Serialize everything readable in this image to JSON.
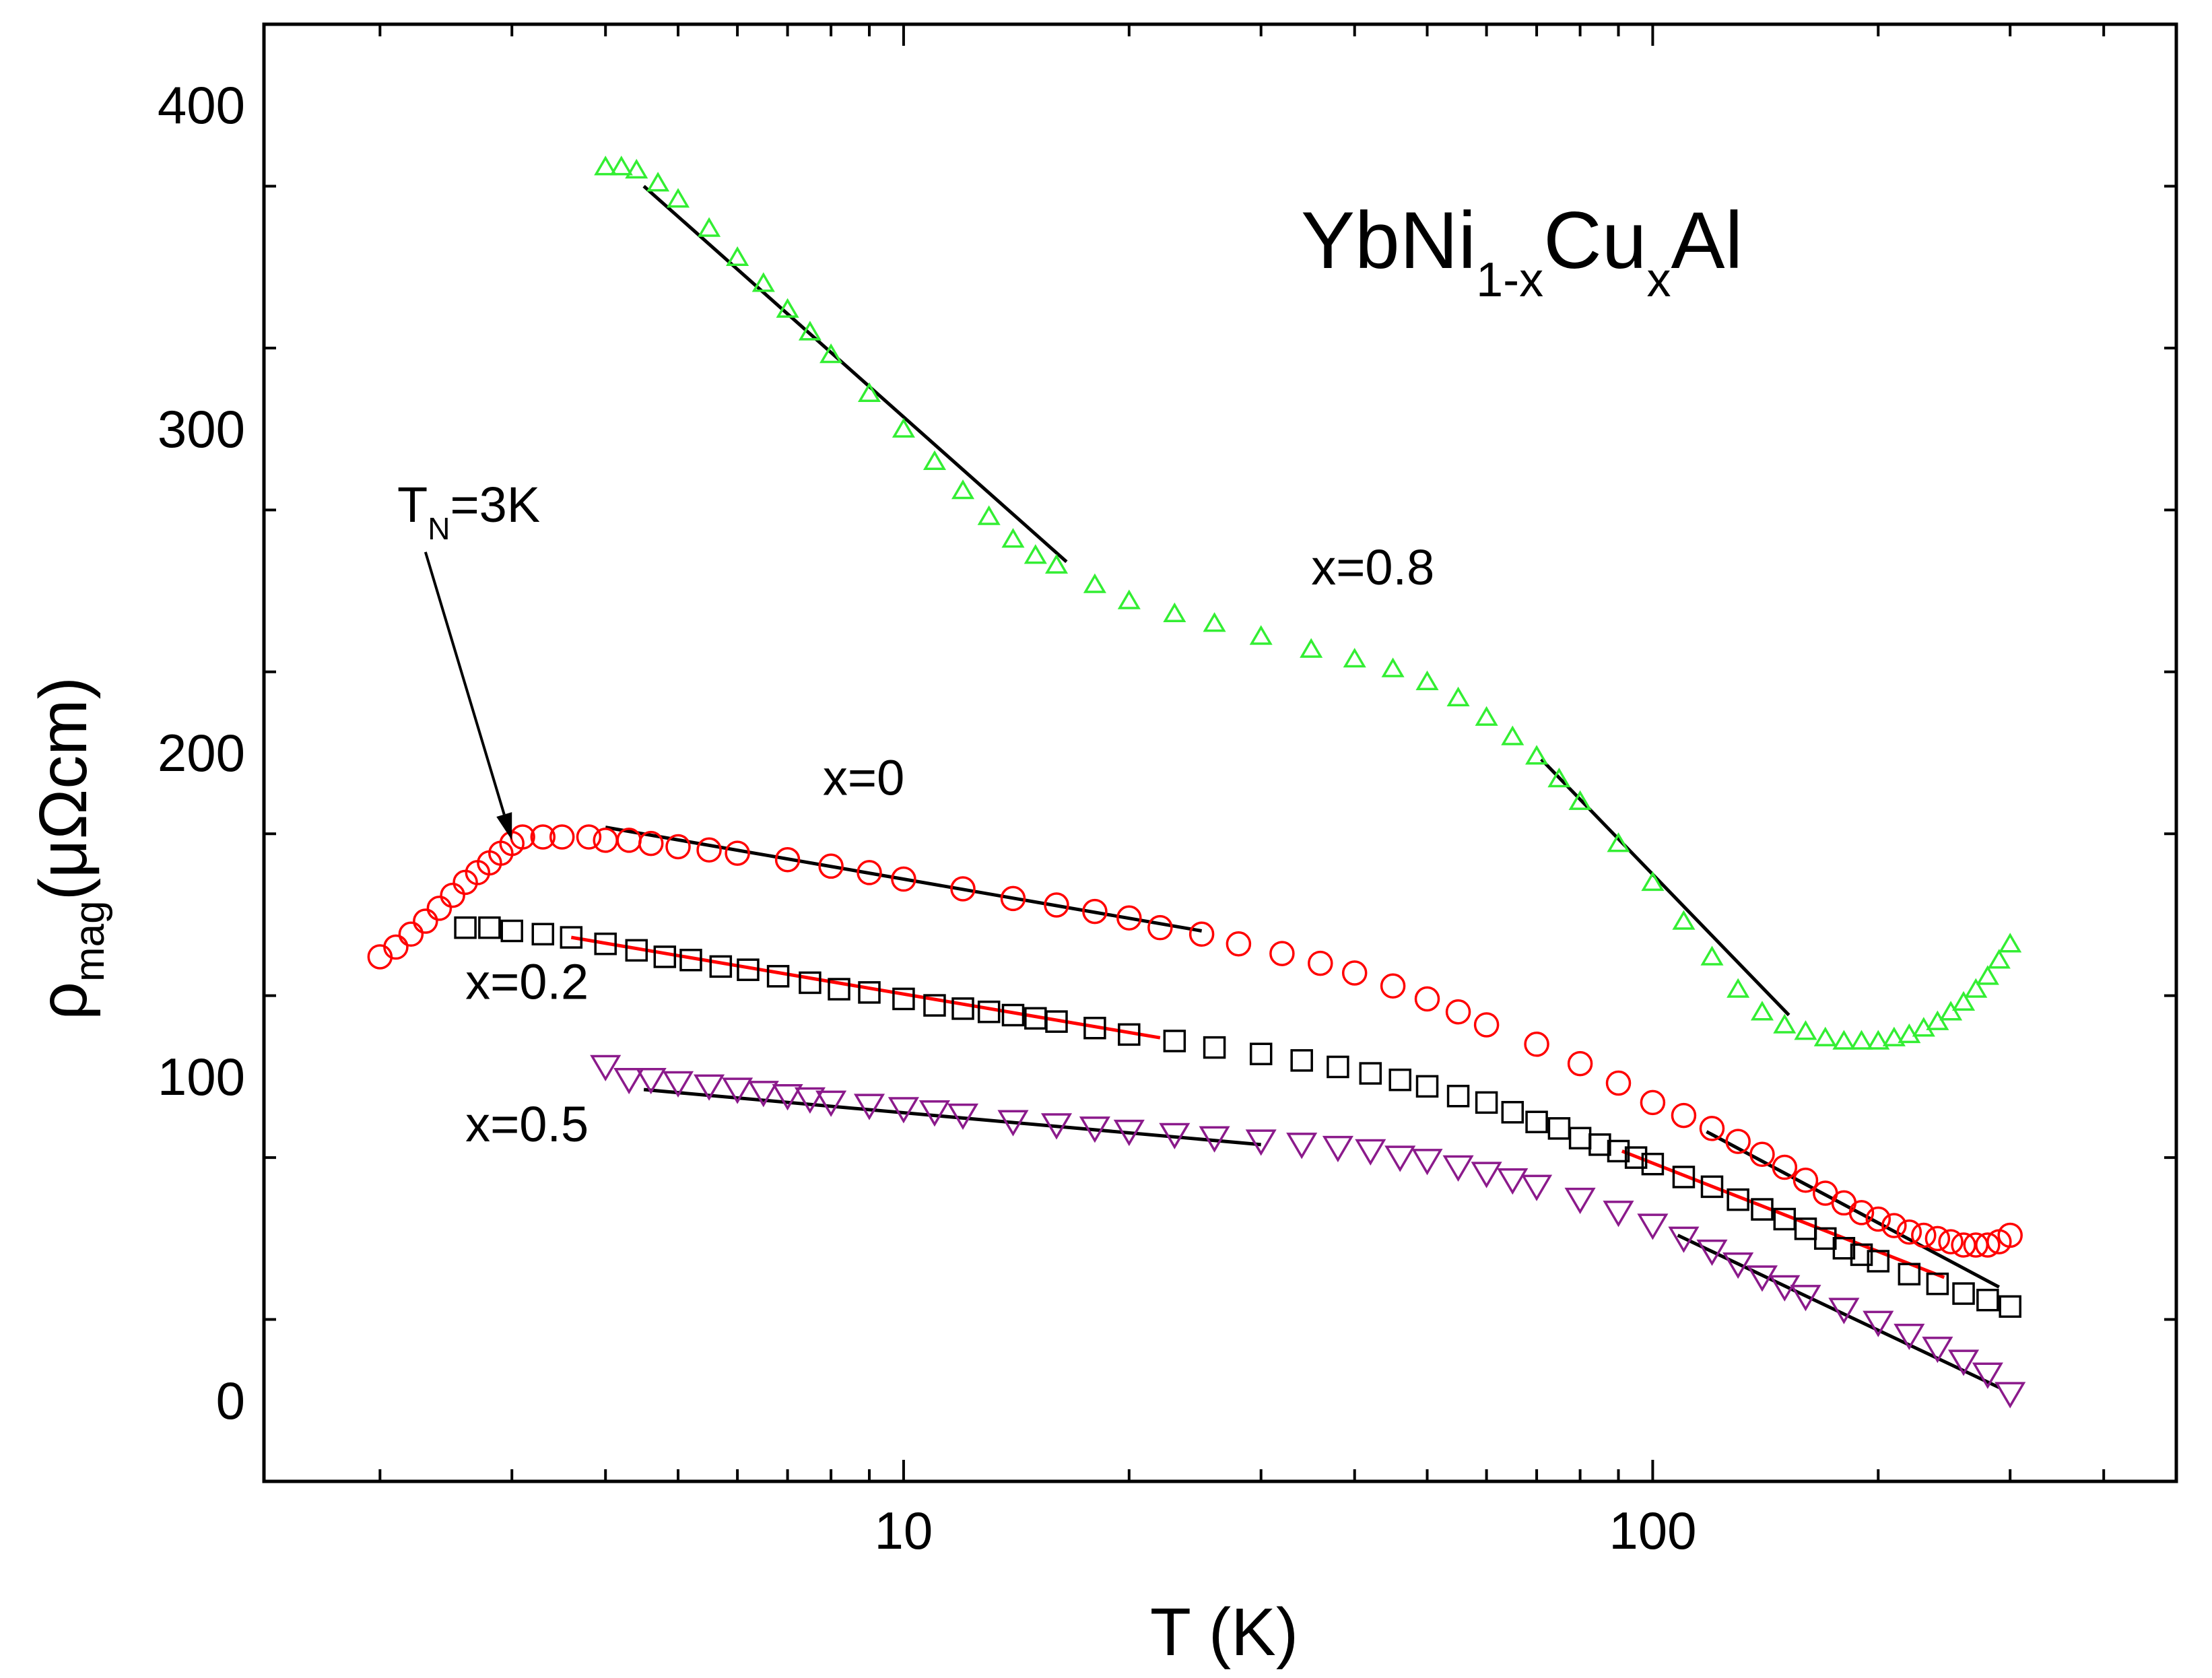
{
  "chart_data": {
    "type": "scatter",
    "title_parts": {
      "base": "YbNi",
      "sub1": "1-x",
      "mid": "Cu",
      "sub2": "x",
      "end": "Al"
    },
    "xlabel": "T (K)",
    "ylabel_parts": {
      "symbol": "ρ",
      "sub": "mag",
      "unit": "(μΩcm)"
    },
    "x_scale": "log",
    "xlim": [
      1.4,
      500
    ],
    "ylim": [
      -25,
      425
    ],
    "x_ticks": [
      10,
      100
    ],
    "x_tick_labels": [
      "10",
      "100"
    ],
    "y_ticks": [
      0,
      100,
      200,
      300,
      400
    ],
    "y_tick_labels": [
      "0",
      "100",
      "200",
      "300",
      "400"
    ],
    "annotations": {
      "tn_label": "T",
      "tn_sub": "N",
      "tn_value": "=3K",
      "tn_arrow_target": [
        3.0,
        173
      ],
      "tn_arrow_from": [
        2.3,
        262
      ]
    },
    "series": [
      {
        "name": "x=0",
        "label": "x=0",
        "color": "#ff0000",
        "marker": "circle",
        "label_pos": [
          7.8,
          187
        ],
        "x": [
          2.0,
          2.1,
          2.2,
          2.3,
          2.4,
          2.5,
          2.6,
          2.7,
          2.8,
          2.9,
          3.0,
          3.1,
          3.3,
          3.5,
          3.8,
          4.0,
          4.3,
          4.6,
          5.0,
          5.5,
          6,
          7,
          8,
          9,
          10,
          12,
          14,
          16,
          18,
          20,
          22,
          25,
          28,
          32,
          36,
          40,
          45,
          50,
          55,
          60,
          70,
          80,
          90,
          100,
          110,
          120,
          130,
          140,
          150,
          160,
          170,
          180,
          190,
          200,
          210,
          220,
          230,
          240,
          250,
          260,
          270,
          280,
          290,
          300
        ],
        "y": [
          137,
          140,
          144,
          148,
          152,
          156,
          160,
          163,
          166,
          169,
          172,
          174,
          174,
          174,
          174,
          173,
          173,
          172,
          171,
          170,
          169,
          167,
          165,
          163,
          161,
          158,
          155,
          153,
          151,
          149,
          146,
          144,
          141,
          138,
          135,
          132,
          128,
          124,
          120,
          116,
          110,
          104,
          98,
          92,
          88,
          84,
          80,
          76,
          72,
          68,
          64,
          61,
          58,
          56,
          54,
          52,
          51,
          50,
          49,
          48,
          48,
          48,
          49,
          51
        ]
      },
      {
        "name": "x=0.2",
        "label": "x=0.2",
        "color": "#000000",
        "marker": "square",
        "label_pos": [
          2.6,
          124
        ],
        "x": [
          2.6,
          2.8,
          3.0,
          3.3,
          3.6,
          4.0,
          4.4,
          4.8,
          5.2,
          5.7,
          6.2,
          6.8,
          7.5,
          8.2,
          9,
          10,
          11,
          12,
          13,
          14,
          15,
          16,
          18,
          20,
          23,
          26,
          30,
          34,
          38,
          42,
          46,
          50,
          55,
          60,
          65,
          70,
          75,
          80,
          85,
          90,
          95,
          100,
          110,
          120,
          130,
          140,
          150,
          160,
          170,
          180,
          190,
          200,
          220,
          240,
          260,
          280,
          300
        ],
        "y": [
          146,
          146,
          145,
          144,
          143,
          141,
          139,
          137,
          136,
          134,
          133,
          131,
          129,
          127,
          126,
          124,
          122,
          121,
          120,
          119,
          118,
          117,
          115,
          113,
          111,
          109,
          107,
          105,
          103,
          101,
          99,
          97,
          94,
          92,
          89,
          86,
          84,
          81,
          79,
          77,
          75,
          73,
          69,
          66,
          62,
          59,
          56,
          53,
          50,
          47,
          45,
          43,
          39,
          36,
          33,
          31,
          29
        ]
      },
      {
        "name": "x=0.5",
        "label": "x=0.5",
        "color": "#8b1a8b",
        "marker": "triangle-down",
        "label_pos": [
          2.6,
          80
        ],
        "x": [
          4.0,
          4.3,
          4.6,
          5.0,
          5.5,
          6,
          6.5,
          7,
          7.5,
          8,
          9,
          10,
          11,
          12,
          14,
          16,
          18,
          20,
          23,
          26,
          30,
          34,
          38,
          42,
          46,
          50,
          55,
          60,
          65,
          70,
          80,
          90,
          100,
          110,
          120,
          130,
          140,
          150,
          160,
          180,
          200,
          220,
          240,
          260,
          280,
          300
        ],
        "y": [
          103,
          99,
          99,
          98,
          97,
          96,
          95,
          94,
          93,
          92,
          91,
          90,
          89,
          88,
          86,
          85,
          84,
          83,
          82,
          81,
          80,
          79,
          78,
          77,
          75,
          74,
          72,
          70,
          68,
          66,
          62,
          58,
          54,
          50,
          46,
          42,
          38,
          35,
          32,
          28,
          24,
          20,
          16,
          12,
          8,
          2
        ]
      },
      {
        "name": "x=0.8",
        "label": "x=0.8",
        "color": "#33ee33",
        "marker": "triangle-up",
        "label_pos": [
          35,
          252
        ],
        "x": [
          4.0,
          4.2,
          4.4,
          4.7,
          5.0,
          5.5,
          6,
          6.5,
          7,
          7.5,
          8,
          9,
          10,
          11,
          12,
          13,
          14,
          15,
          16,
          18,
          20,
          23,
          26,
          30,
          35,
          40,
          45,
          50,
          55,
          60,
          65,
          70,
          75,
          80,
          90,
          100,
          110,
          120,
          130,
          140,
          150,
          160,
          170,
          180,
          190,
          200,
          210,
          220,
          230,
          240,
          250,
          260,
          270,
          280,
          290,
          300
        ],
        "y": [
          381,
          381,
          380,
          376,
          371,
          362,
          353,
          345,
          337,
          330,
          323,
          311,
          300,
          290,
          281,
          273,
          266,
          261,
          258,
          252,
          247,
          243,
          240,
          236,
          232,
          229,
          226,
          222,
          217,
          211,
          205,
          199,
          192,
          185,
          172,
          160,
          148,
          137,
          127,
          120,
          116,
          114,
          112,
          111,
          111,
          111,
          112,
          113,
          115,
          117,
          120,
          123,
          127,
          131,
          136,
          141
        ]
      }
    ],
    "fit_lines": [
      {
        "name": "x=0.8-fit-low",
        "color": "#000000",
        "x": [
          4.5,
          16.5
        ],
        "y": [
          375,
          259
        ]
      },
      {
        "name": "x=0.8-fit-high",
        "color": "#000000",
        "x": [
          71,
          152
        ],
        "y": [
          198,
          119
        ]
      },
      {
        "name": "x=0-fit-low",
        "color": "#000000",
        "x": [
          4.0,
          25
        ],
        "y": [
          177,
          145
        ]
      },
      {
        "name": "x=0-fit-high",
        "color": "#000000",
        "x": [
          118,
          290
        ],
        "y": [
          83,
          35
        ]
      },
      {
        "name": "x=0.2-fit-low",
        "color": "#ff0000",
        "x": [
          3.6,
          22
        ],
        "y": [
          143,
          112
        ]
      },
      {
        "name": "x=0.2-fit-high",
        "color": "#ff0000",
        "x": [
          91,
          245
        ],
        "y": [
          77,
          38
        ]
      },
      {
        "name": "x=0.5-fit-low",
        "color": "#000000",
        "x": [
          4.5,
          30
        ],
        "y": [
          96,
          79
        ]
      },
      {
        "name": "x=0.5-fit-high",
        "color": "#000000",
        "x": [
          108,
          290
        ],
        "y": [
          51,
          4
        ]
      }
    ]
  }
}
